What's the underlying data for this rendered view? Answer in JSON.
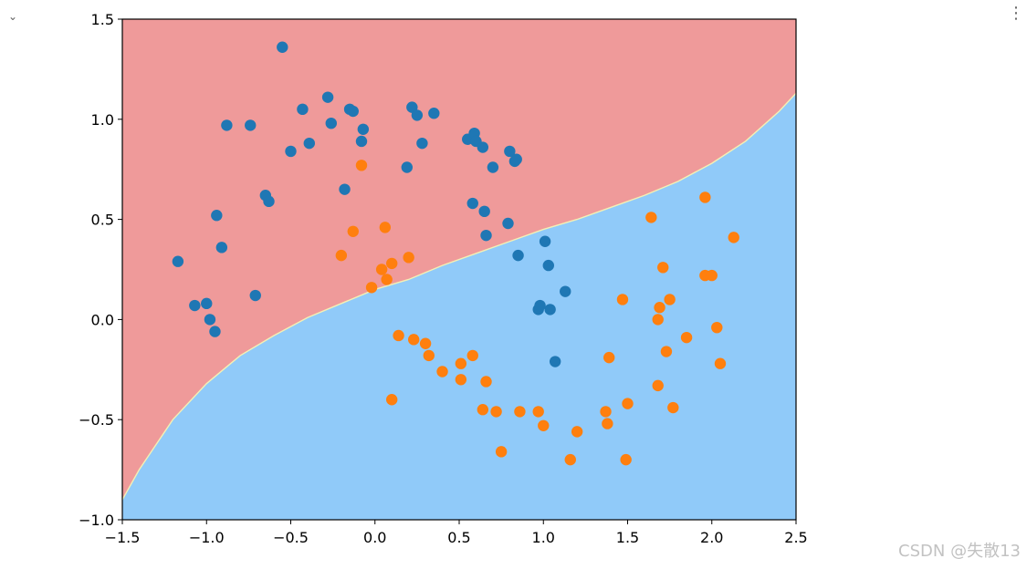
{
  "toolbar": {
    "collapse_icon": "chevron-down-icon",
    "collapse_glyph": "⌄",
    "menu_icon": "more-vertical-icon",
    "menu_glyph": "⋮"
  },
  "watermark": "CSDN @失散13",
  "chart_data": {
    "type": "scatter",
    "title": "",
    "xlabel": "",
    "ylabel": "",
    "xlim": [
      -1.5,
      2.5
    ],
    "ylim": [
      -1.0,
      1.5
    ],
    "x_ticks": [
      "−1.5",
      "−1.0",
      "−0.5",
      "0.0",
      "0.5",
      "1.0",
      "1.5",
      "2.0",
      "2.5"
    ],
    "y_ticks": [
      "−1.0",
      "−0.5",
      "0.0",
      "0.5",
      "1.0",
      "1.5"
    ],
    "x_tick_values": [
      -1.5,
      -1.0,
      -0.5,
      0.0,
      0.5,
      1.0,
      1.5,
      2.0,
      2.5
    ],
    "y_tick_values": [
      -1.0,
      -0.5,
      0.0,
      0.5,
      1.0,
      1.5
    ],
    "grid": false,
    "decision_regions": {
      "class0_color": "#ef9a9a",
      "class1_color": "#90caf9",
      "boundary": {
        "x": [
          -1.5,
          -1.4,
          -1.2,
          -1.0,
          -0.8,
          -0.6,
          -0.4,
          -0.2,
          0.0,
          0.2,
          0.4,
          0.6,
          0.8,
          1.0,
          1.2,
          1.4,
          1.6,
          1.8,
          2.0,
          2.2,
          2.4,
          2.5
        ],
        "y": [
          -0.9,
          -0.75,
          -0.5,
          -0.32,
          -0.18,
          -0.08,
          0.01,
          0.08,
          0.15,
          0.2,
          0.27,
          0.33,
          0.39,
          0.45,
          0.5,
          0.56,
          0.62,
          0.69,
          0.78,
          0.89,
          1.04,
          1.13
        ]
      }
    },
    "series": [
      {
        "color": "#1f77b4",
        "points": [
          [
            -0.55,
            1.36
          ],
          [
            -1.17,
            0.29
          ],
          [
            -1.07,
            0.07
          ],
          [
            -1.0,
            0.08
          ],
          [
            -0.98,
            -0.0
          ],
          [
            -0.95,
            -0.06
          ],
          [
            -0.94,
            0.52
          ],
          [
            -0.91,
            0.36
          ],
          [
            -0.88,
            0.97
          ],
          [
            -0.74,
            0.97
          ],
          [
            -0.71,
            0.12
          ],
          [
            -0.65,
            0.62
          ],
          [
            -0.63,
            0.59
          ],
          [
            -0.5,
            0.84
          ],
          [
            -0.43,
            1.05
          ],
          [
            -0.39,
            0.88
          ],
          [
            -0.28,
            1.11
          ],
          [
            -0.26,
            0.98
          ],
          [
            -0.18,
            0.65
          ],
          [
            -0.15,
            1.05
          ],
          [
            -0.13,
            1.04
          ],
          [
            -0.08,
            0.89
          ],
          [
            -0.07,
            0.95
          ],
          [
            0.19,
            0.76
          ],
          [
            0.22,
            1.06
          ],
          [
            0.25,
            1.02
          ],
          [
            0.28,
            0.88
          ],
          [
            0.35,
            1.03
          ],
          [
            0.55,
            0.9
          ],
          [
            0.58,
            0.58
          ],
          [
            0.59,
            0.93
          ],
          [
            0.6,
            0.89
          ],
          [
            0.64,
            0.86
          ],
          [
            0.65,
            0.54
          ],
          [
            0.66,
            0.42
          ],
          [
            0.7,
            0.76
          ],
          [
            0.79,
            0.48
          ],
          [
            0.8,
            0.84
          ],
          [
            0.83,
            0.79
          ],
          [
            0.84,
            0.8
          ],
          [
            0.85,
            0.32
          ],
          [
            0.97,
            0.05
          ],
          [
            0.98,
            0.07
          ],
          [
            1.01,
            0.39
          ],
          [
            1.03,
            0.27
          ],
          [
            1.04,
            0.05
          ],
          [
            1.07,
            -0.21
          ],
          [
            1.13,
            0.14
          ]
        ]
      },
      {
        "color": "#ff7f0e",
        "points": [
          [
            -0.2,
            0.32
          ],
          [
            -0.13,
            0.44
          ],
          [
            -0.08,
            0.77
          ],
          [
            -0.02,
            0.16
          ],
          [
            0.04,
            0.25
          ],
          [
            0.06,
            0.46
          ],
          [
            0.07,
            0.2
          ],
          [
            0.1,
            0.28
          ],
          [
            0.1,
            -0.4
          ],
          [
            0.14,
            -0.08
          ],
          [
            0.2,
            0.31
          ],
          [
            0.23,
            -0.1
          ],
          [
            0.3,
            -0.12
          ],
          [
            0.32,
            -0.18
          ],
          [
            0.4,
            -0.26
          ],
          [
            0.51,
            -0.3
          ],
          [
            0.51,
            -0.22
          ],
          [
            0.58,
            -0.18
          ],
          [
            0.64,
            -0.45
          ],
          [
            0.66,
            -0.31
          ],
          [
            0.72,
            -0.46
          ],
          [
            0.75,
            -0.66
          ],
          [
            0.86,
            -0.46
          ],
          [
            0.97,
            -0.46
          ],
          [
            1.0,
            -0.53
          ],
          [
            1.16,
            -0.7
          ],
          [
            1.2,
            -0.56
          ],
          [
            1.37,
            -0.46
          ],
          [
            1.38,
            -0.52
          ],
          [
            1.39,
            -0.19
          ],
          [
            1.47,
            0.1
          ],
          [
            1.49,
            -0.7
          ],
          [
            1.5,
            -0.42
          ],
          [
            1.64,
            0.51
          ],
          [
            1.68,
            -0.33
          ],
          [
            1.68,
            0.0
          ],
          [
            1.69,
            0.06
          ],
          [
            1.71,
            0.26
          ],
          [
            1.73,
            -0.16
          ],
          [
            1.75,
            0.1
          ],
          [
            1.77,
            -0.44
          ],
          [
            1.85,
            -0.09
          ],
          [
            1.96,
            0.61
          ],
          [
            1.96,
            0.22
          ],
          [
            2.0,
            0.22
          ],
          [
            2.03,
            -0.04
          ],
          [
            2.05,
            -0.22
          ],
          [
            2.13,
            0.41
          ]
        ]
      }
    ]
  }
}
